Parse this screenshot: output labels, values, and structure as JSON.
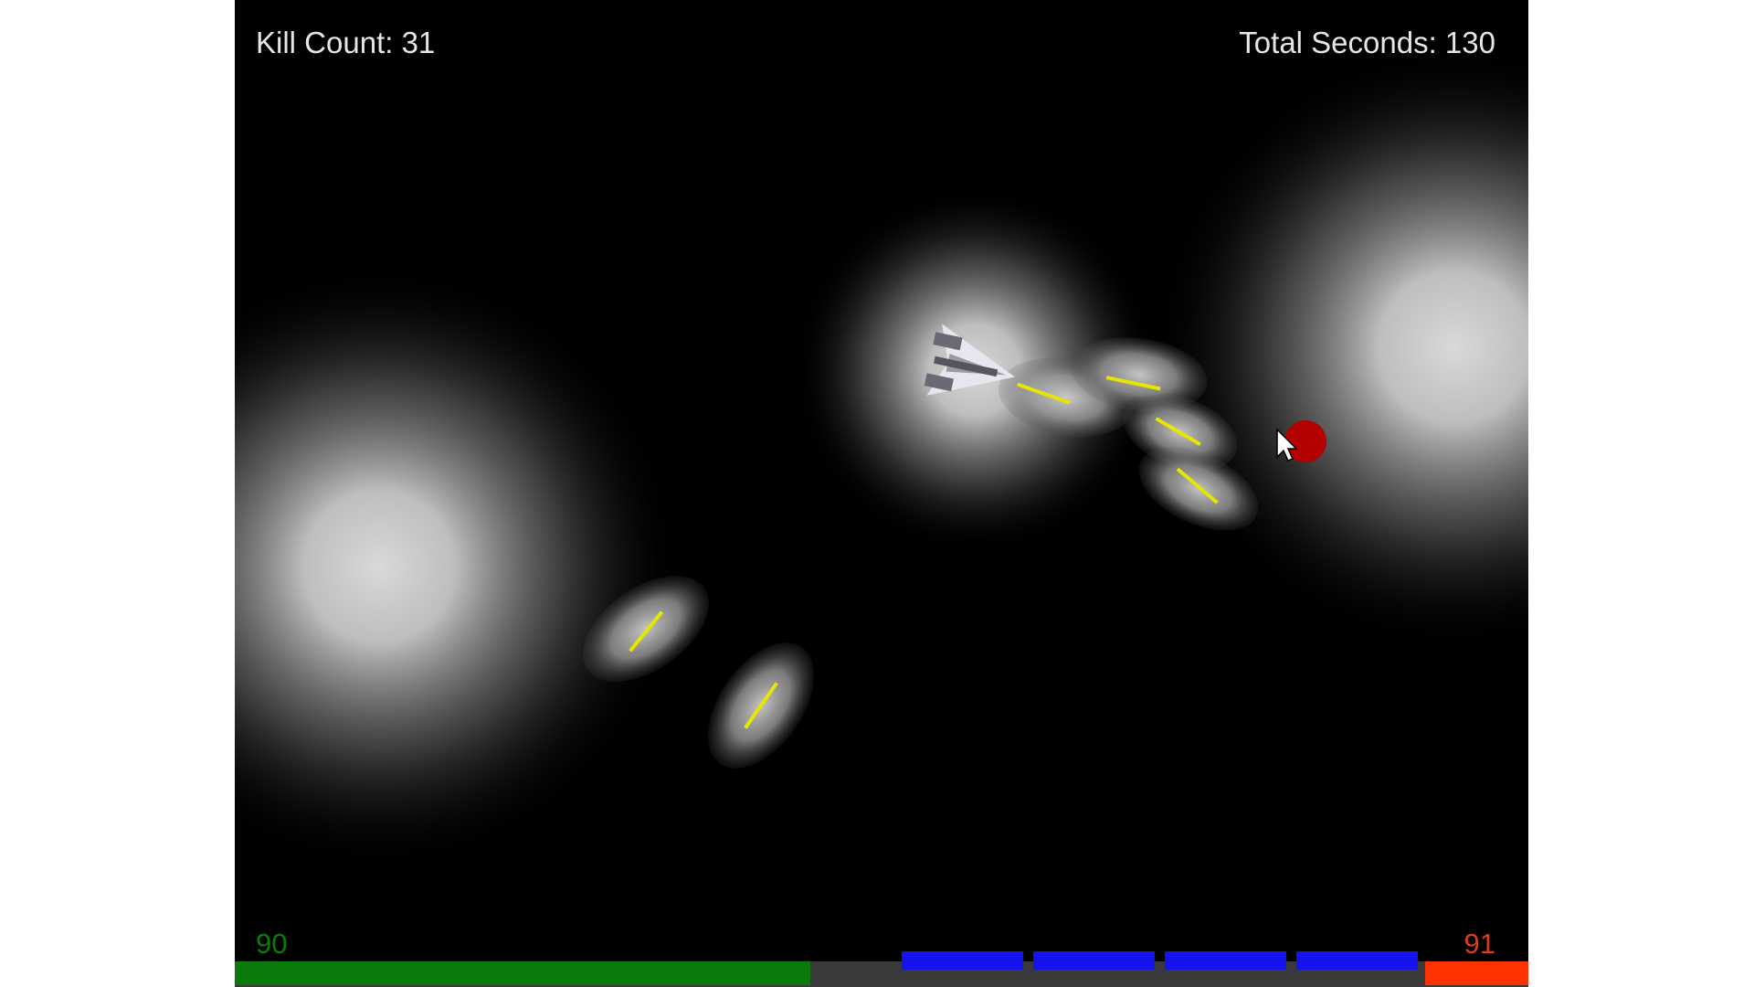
{
  "hud": {
    "kill_count": "Kill Count: 31",
    "total_seconds": "Total Seconds: 130"
  },
  "player": {
    "health": "90",
    "health_fraction": 0.9,
    "health_color": "#0a7a0a"
  },
  "enemy": {
    "value": "91",
    "color": "#ff3300",
    "value_color": "#e03a1a"
  },
  "ammo": {
    "count": 4,
    "color": "#1414f0"
  },
  "projectile_color": "#e6e600",
  "target_color": "#b30000",
  "icons": [
    "spaceship-icon",
    "enemy-target-icon",
    "mouse-cursor-icon"
  ]
}
